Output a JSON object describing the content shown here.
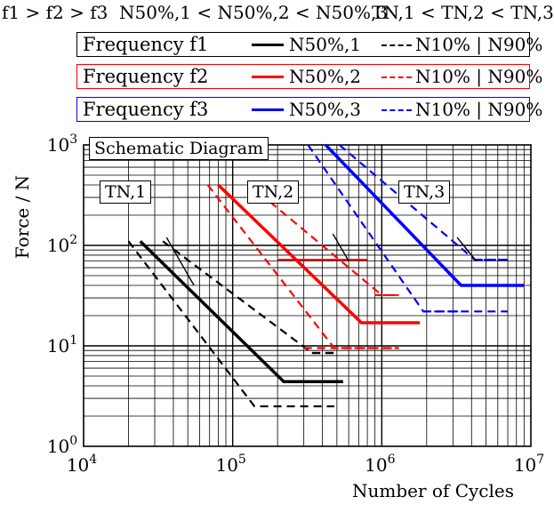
{
  "header": {
    "freq_order": "f1 > f2 > f3",
    "n50_order": "N50%,1 < N50%,2 < N50%,3",
    "tn_order": "TN,1 < TN,2 < TN,3"
  },
  "legend": [
    {
      "freq": "Frequency f1",
      "solid": "N50%,1",
      "dashed": "N10% | N90%",
      "color": "#000000"
    },
    {
      "freq": "Frequency f2",
      "solid": "N50%,2",
      "dashed": "N10% | N90%",
      "color": "#ff0000"
    },
    {
      "freq": "Frequency f3",
      "solid": "N50%,3",
      "dashed": "N10% | N90%",
      "color": "#0000ff"
    }
  ],
  "notes": {
    "schematic": "Schematic Diagram",
    "tn1": "TN,1",
    "tn2": "TN,2",
    "tn3": "TN,3"
  },
  "chart_data": {
    "type": "line",
    "xlabel": "Number of Cycles",
    "ylabel": "Force / N",
    "xscale": "log",
    "yscale": "log",
    "xlim": [
      10000,
      10000000
    ],
    "ylim": [
      1,
      1000
    ],
    "x_ticks": [
      "10^4",
      "10^5",
      "10^6",
      "10^7"
    ],
    "y_ticks": [
      "10^0",
      "10^1",
      "10^2",
      "10^3"
    ],
    "grid": true,
    "series": [
      {
        "name": "N50%,1",
        "style": "solid",
        "color": "#000000",
        "x": [
          24000,
          220000,
          550000
        ],
        "y": [
          110,
          4.4,
          4.4
        ]
      },
      {
        "name": "N10% | N90%",
        "style": "dashed",
        "color": "#000000",
        "x": [
          20000,
          140000,
          480000
        ],
        "y": [
          110,
          2.5,
          2.5
        ]
      },
      {
        "name": "N10% | N90%",
        "style": "dashed",
        "color": "#000000",
        "x": [
          34000,
          340000,
          480000
        ],
        "y": [
          110,
          8.5,
          8.5
        ]
      },
      {
        "name": "N50%,2",
        "style": "solid",
        "color": "#ff0000",
        "x": [
          80000,
          730000,
          1800000
        ],
        "y": [
          400,
          17,
          17
        ]
      },
      {
        "name": "N10% | N90%",
        "style": "dashed",
        "color": "#ff0000",
        "x": [
          68000,
          480000,
          1300000
        ],
        "y": [
          400,
          9.5,
          9.5
        ]
      },
      {
        "name": "N10% | N90%",
        "style": "dashed",
        "color": "#ff0000",
        "x": [
          130000,
          1000000,
          1300000
        ],
        "y": [
          400,
          32,
          32
        ]
      },
      {
        "name": "N50%,3",
        "style": "solid",
        "color": "#0000ff",
        "x": [
          420000,
          3400000,
          9000000
        ],
        "y": [
          1000,
          40,
          40
        ]
      },
      {
        "name": "N10% | N90%",
        "style": "dashed",
        "color": "#0000ff",
        "x": [
          320000,
          1900000,
          7000000
        ],
        "y": [
          1000,
          22,
          22
        ]
      },
      {
        "name": "N10% | N90%",
        "style": "dashed",
        "color": "#0000ff",
        "x": [
          520000,
          4200000,
          7000000
        ],
        "y": [
          1000,
          72,
          72
        ]
      }
    ],
    "horizontal_segments": [
      {
        "style": "solid",
        "color": "#ff0000",
        "x": [
          200000,
          800000
        ],
        "y": 72
      },
      {
        "style": "dashed",
        "color": "#ff0000",
        "x": [
          300000,
          1300000
        ],
        "y": 9.5
      },
      {
        "style": "dashed",
        "color": "#ff0000",
        "x": [
          900000,
          1300000
        ],
        "y": 32
      },
      {
        "style": "dashed",
        "color": "#0000ff",
        "x": [
          1900000,
          3500000
        ],
        "y": 22
      },
      {
        "style": "dashed",
        "color": "#0000ff",
        "x": [
          4200000,
          7000000
        ],
        "y": 72
      },
      {
        "style": "dashed",
        "color": "#000000",
        "x": [
          340000,
          480000
        ],
        "y": 8.5
      }
    ],
    "leaders": [
      {
        "label": "TN,1",
        "x": [
          36000,
          55000
        ],
        "y": [
          120,
          40
        ]
      },
      {
        "label": "TN,2",
        "x": [
          470000,
          600000
        ],
        "y": [
          130,
          70
        ]
      },
      {
        "label": "TN,3",
        "x": [
          3200000,
          4300000
        ],
        "y": [
          120,
          70
        ]
      }
    ]
  }
}
